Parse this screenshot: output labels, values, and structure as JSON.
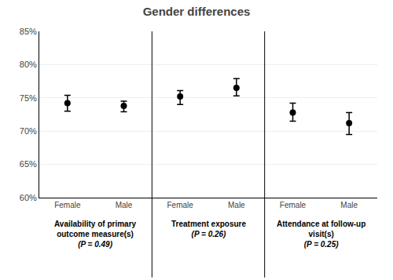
{
  "chart_data": {
    "type": "scatter",
    "title": "Gender differences",
    "categories": [
      "Female",
      "Male",
      "Female",
      "Male",
      "Female",
      "Male"
    ],
    "group_labels": [
      [
        "Availability of primary",
        "outcome measure(s)"
      ],
      [
        "Treatment exposure"
      ],
      [
        "Attendance at follow-up",
        "visit(s)"
      ]
    ],
    "p_labels": [
      "(P = 0.49)",
      "(P = 0.26)",
      "(P = 0.25)"
    ],
    "values": [
      74.2,
      73.8,
      75.2,
      76.5,
      72.8,
      71.2
    ],
    "lower": [
      73.0,
      72.9,
      74.0,
      75.3,
      71.5,
      69.5
    ],
    "upper": [
      75.4,
      74.5,
      76.1,
      77.9,
      74.2,
      72.8
    ],
    "color": "black",
    "ylim": [
      60,
      85
    ],
    "yticks": [
      {
        "value": 60,
        "label": "60%"
      },
      {
        "value": 65,
        "label": "65%"
      },
      {
        "value": 70,
        "label": "70%"
      },
      {
        "value": 75,
        "label": "75%"
      },
      {
        "value": 80,
        "label": "80%"
      },
      {
        "value": 85,
        "label": "85%"
      }
    ],
    "grid": true
  }
}
